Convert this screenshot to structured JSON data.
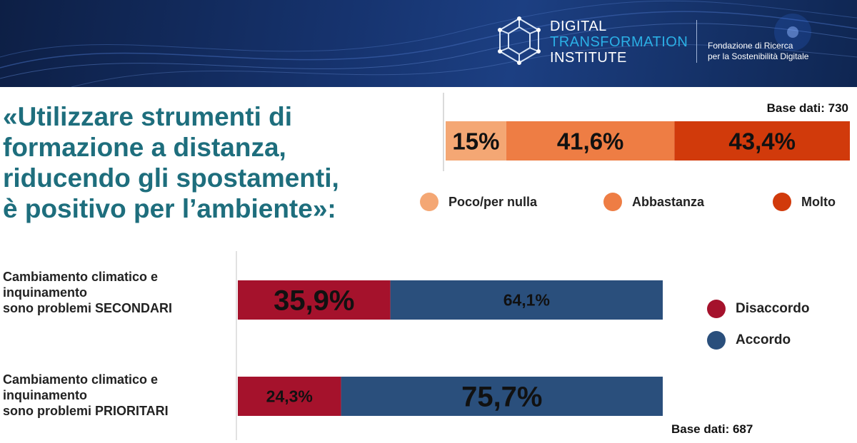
{
  "header": {
    "brand": [
      "DIGITAL",
      "TRANSFORMATION",
      "INSTITUTE"
    ],
    "subtitle": [
      "Fondazione di Ricerca",
      "per la Sostenibilità Digitale"
    ]
  },
  "headline": [
    "«Utilizzare strumenti di",
    "formazione a distanza,",
    "riducendo gli spostamenti,",
    "è positivo per l’ambiente»:"
  ],
  "colors": {
    "poco": "#f4a774",
    "abbastanza": "#ee7d44",
    "molto": "#d13a0b",
    "disaccordo": "#a5122c",
    "accordo": "#2a4f7c",
    "headline": "#1e6e7d"
  },
  "chart_data": [
    {
      "type": "bar",
      "orientation": "horizontal-stacked",
      "base_label": "Base dati: 730",
      "categories": [
        ""
      ],
      "series": [
        {
          "name": "Poco/per nulla",
          "values": [
            15
          ],
          "label": "15%"
        },
        {
          "name": "Abbastanza",
          "values": [
            41.6
          ],
          "label": "41,6%"
        },
        {
          "name": "Molto",
          "values": [
            43.4
          ],
          "label": "43,4%"
        }
      ],
      "xlim": [
        0,
        100
      ],
      "legend_position": "bottom"
    },
    {
      "type": "bar",
      "orientation": "horizontal-stacked",
      "base_label": "Base dati: 687",
      "categories": [
        [
          "Cambiamento climatico e",
          "inquinamento",
          "sono problemi SECONDARI"
        ],
        [
          "Cambiamento climatico e",
          "inquinamento",
          "sono problemi PRIORITARI"
        ]
      ],
      "series": [
        {
          "name": "Disaccordo",
          "values": [
            35.9,
            24.3
          ],
          "labels": [
            "35,9%",
            "24,3%"
          ]
        },
        {
          "name": "Accordo",
          "values": [
            64.1,
            75.7
          ],
          "labels": [
            "64,1%",
            "75,7%"
          ]
        }
      ],
      "xlim": [
        0,
        100
      ],
      "legend_position": "right"
    }
  ]
}
